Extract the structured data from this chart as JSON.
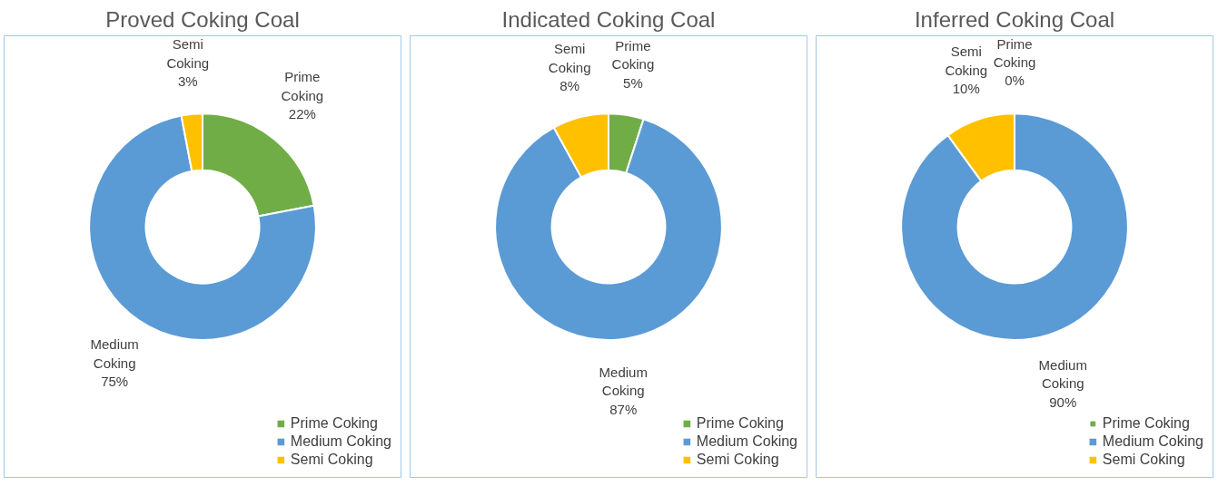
{
  "chart_data": [
    {
      "type": "donut",
      "title": "Proved Coking Coal",
      "categories": [
        "Prime Coking",
        "Medium Coking",
        "Semi Coking"
      ],
      "values": [
        22,
        75,
        3
      ],
      "value_labels": [
        "22%",
        "75%",
        "3%"
      ],
      "colors": [
        "#70ad47",
        "#5b9bd5",
        "#ffc000"
      ],
      "legend": "bottom right"
    },
    {
      "type": "donut",
      "title": "Indicated Coking Coal",
      "categories": [
        "Prime Coking",
        "Medium Coking",
        "Semi Coking"
      ],
      "values": [
        5,
        87,
        8
      ],
      "value_labels": [
        "5%",
        "87%",
        "8%"
      ],
      "colors": [
        "#70ad47",
        "#5b9bd5",
        "#ffc000"
      ],
      "legend": "bottom right"
    },
    {
      "type": "donut",
      "title": "Inferred Coking Coal",
      "categories": [
        "Prime Coking",
        "Medium Coking",
        "Semi Coking"
      ],
      "values": [
        0,
        90,
        10
      ],
      "value_labels": [
        "0%",
        "90%",
        "10%"
      ],
      "colors": [
        "#70ad47",
        "#5b9bd5",
        "#ffc000"
      ],
      "legend": "bottom right"
    }
  ]
}
